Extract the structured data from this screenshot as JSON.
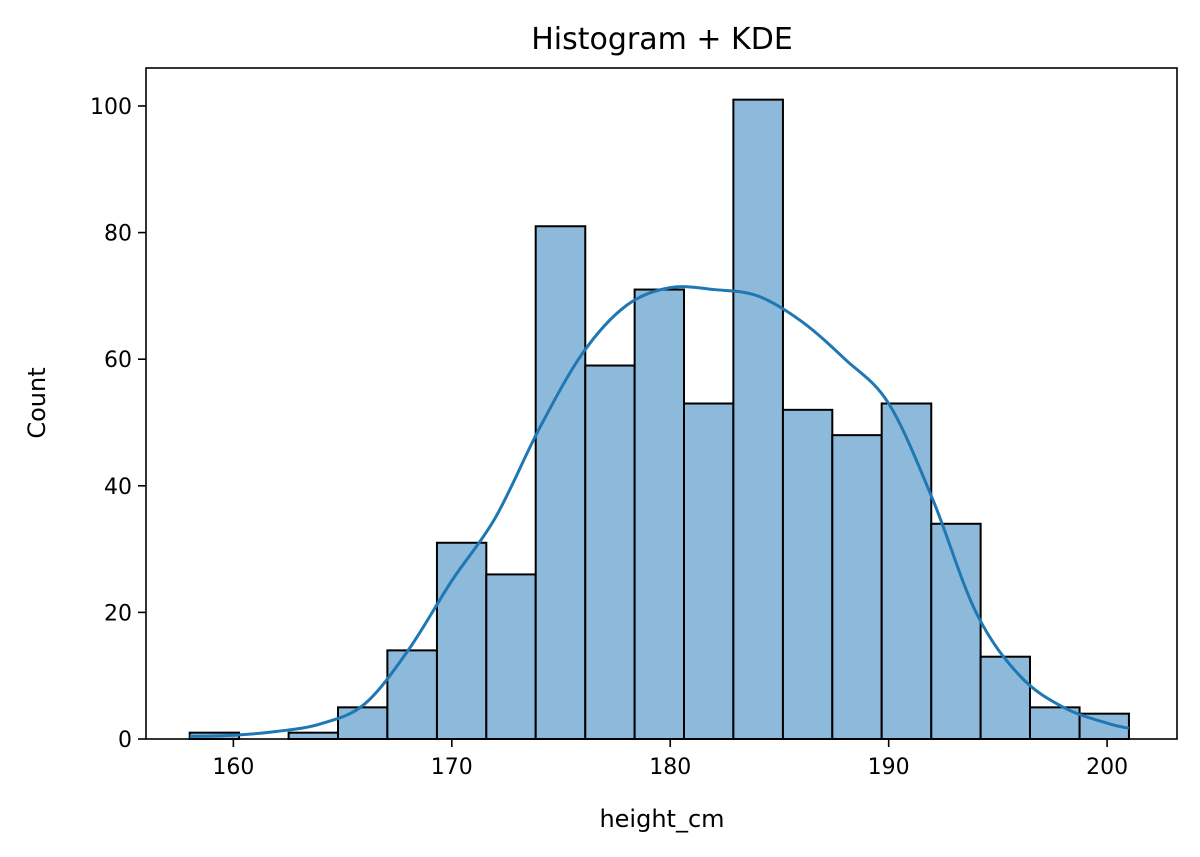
{
  "chart_data": {
    "type": "bar",
    "title": "Histogram + KDE",
    "xlabel": "height_cm",
    "ylabel": "Count",
    "xlim": [
      156,
      203.2
    ],
    "ylim": [
      0,
      106
    ],
    "x_ticks": [
      160,
      170,
      180,
      190,
      200
    ],
    "y_ticks": [
      0,
      20,
      40,
      60,
      80,
      100
    ],
    "bins": {
      "edges": [
        158,
        160.26,
        162.53,
        164.79,
        167.05,
        169.32,
        171.58,
        173.84,
        176.11,
        178.37,
        180.63,
        182.89,
        185.16,
        187.42,
        189.68,
        191.95,
        194.21,
        196.47,
        198.74,
        201
      ],
      "counts": [
        1,
        0,
        1,
        5,
        14,
        31,
        26,
        81,
        59,
        71,
        53,
        101,
        52,
        48,
        53,
        34,
        13,
        5,
        4
      ]
    },
    "kde": {
      "x": [
        158,
        160,
        162,
        164,
        166,
        168,
        170,
        172,
        174,
        176,
        178,
        180,
        182,
        184,
        186,
        188,
        190,
        192,
        194,
        196,
        198,
        200,
        201
      ],
      "y": [
        0.4,
        0.6,
        1.2,
        2.4,
        5.5,
        14,
        25,
        35,
        49,
        61,
        68.5,
        71.3,
        71,
        70,
        66,
        60,
        53,
        38,
        20,
        10,
        5,
        2.5,
        1.7
      ]
    },
    "colors": {
      "bar_fill": "#8db9da",
      "bar_edge": "#000000",
      "kde_line": "#1f77b4"
    },
    "grid": false,
    "legend": "none"
  }
}
